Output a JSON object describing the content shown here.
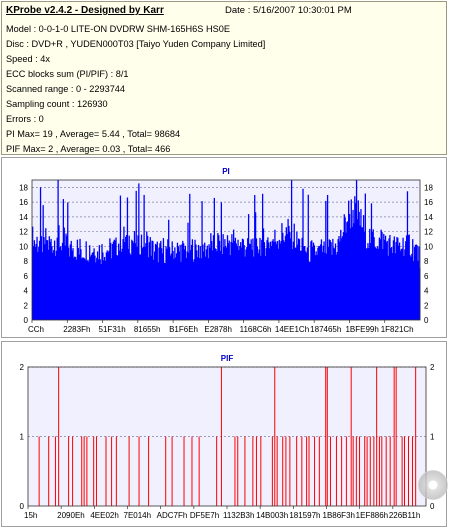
{
  "header": {
    "title": "KProbe v2.4.2 - Designed by Karr",
    "date": "Date : 5/16/2007 10:30:01 PM",
    "lines": [
      "Model : 0-0-1-0 LITE-ON DVDRW SHM-165H6S HS0E",
      "Disc : DVD+R , YUDEN000T03 [Taiyo Yuden Company Limited]",
      "Speed : 4x",
      "ECC blocks sum (PI/PIF) : 8/1",
      "Scanned range : 0 - 2293744",
      "Sampling count : 126930",
      "Errors : 0",
      "PI Max= 19 , Average= 5.44 , Total= 98684",
      "PIF Max= 2 , Average= 0.03 , Total= 466"
    ]
  },
  "colors": {
    "pi_bar": "#0000ff",
    "pif_bar": "#ff0000",
    "plot_bg": "#f0f0ff",
    "title": "#0000c8",
    "grid": "#8080a0"
  },
  "chart_data": [
    {
      "type": "bar",
      "title": "PI",
      "yticks": [
        0,
        2,
        4,
        6,
        8,
        10,
        12,
        14,
        16,
        18
      ],
      "ylim": [
        0,
        19
      ],
      "xticks": [
        "CCh",
        "2283Fh",
        "51F31h",
        "81655h",
        "B1F6Eh",
        "E2878h",
        "1168C6h",
        "14EE1Ch",
        "187465h",
        "1BFE99h",
        "1F821Ch"
      ],
      "series": [
        {
          "values": [
            11.0,
            11.9,
            10.6,
            10.4,
            10.5,
            10.8,
            10.5,
            10.6,
            10.6,
            10.3,
            10.2,
            10.4,
            10.3,
            10.1,
            10.5,
            10.8,
            11.1,
            10.3,
            10.2,
            10.4,
            10.4,
            10.4,
            10.3,
            10.5,
            10.1,
            10.8,
            10.6,
            10.7,
            11.5,
            12.0,
            11.9,
            10.7,
            10.3,
            10.6,
            10.2,
            10.6,
            10.9,
            10.2,
            10.7,
            11.0,
            9.9,
            10.0,
            9.6,
            9.6,
            9.7,
            10.2,
            9.7,
            9.7,
            10.0,
            9.2,
            9.5,
            9.8,
            9.6,
            9.2,
            9.7,
            9.7,
            9.3,
            9.1,
            9.6,
            9.5,
            9.7,
            9.6,
            9.7,
            9.6,
            9.3,
            9.8,
            9.5,
            9.2,
            9.7,
            9.7,
            9.7,
            9.9,
            9.4,
            9.5,
            9.0,
            9.4,
            9.5,
            9.3,
            9.1,
            9.5,
            9.4,
            9.5,
            9.3,
            9.4,
            9.6,
            9.5,
            9.7,
            9.6,
            9.6,
            9.4,
            9.6,
            10.2,
            9.8,
            9.9,
            9.9,
            9.7,
            10.1,
            10.4,
            10.4,
            10.3,
            10.6,
            10.9,
            11.0,
            11.0,
            11.1,
            11.2,
            11.0,
            10.7,
            10.8,
            10.8,
            10.9,
            10.8,
            10.6,
            10.9,
            10.9,
            10.6,
            10.5,
            10.8,
            10.6,
            10.8,
            10.5,
            10.8,
            10.4,
            10.8,
            10.7,
            10.5,
            11.1,
            10.7,
            10.8,
            10.7,
            10.8,
            10.4,
            10.3,
            10.3,
            10.1,
            10.0,
            9.7,
            9.6,
            9.2,
            9.5,
            9.4,
            9.3,
            9.4,
            9.2,
            9.1,
            9.3,
            9.3,
            9.4,
            9.1,
            9.7,
            9.4,
            9.1,
            9.3,
            9.6,
            9.6,
            9.3,
            9.8,
            9.6,
            9.6,
            9.3,
            9.2,
            9.8,
            9.8,
            9.6,
            9.2,
            9.7,
            9.2,
            9.3,
            9.6,
            9.5,
            9.5,
            9.5,
            9.4,
            9.6,
            9.6,
            9.5,
            9.7,
            9.2,
            9.7,
            9.5,
            9.6,
            9.5,
            9.8,
            9.6,
            9.7,
            9.5,
            9.5,
            9.6,
            9.8,
            9.8,
            9.5,
            9.8,
            9.8,
            9.8,
            9.8,
            10.0,
            9.5,
            9.8,
            9.7,
            9.8,
            9.5,
            10.2,
            10.3,
            10.4,
            10.2,
            10.3,
            10.1,
            10.2,
            10.0,
            10.5,
            10.4,
            10.6,
            10.4,
            10.4,
            10.4,
            10.8,
            10.4,
            10.3,
            10.4,
            10.5,
            10.1,
            10.6,
            10.6,
            10.5,
            10.8,
            10.4,
            10.6,
            10.4,
            10.9,
            10.9,
            10.5,
            10.3,
            10.8,
            10.6,
            10.5,
            10.5,
            10.4,
            10.1,
            10.2,
            10.4,
            10.2,
            10.2,
            10.0,
            10.1,
            10.5,
            10.2,
            10.2,
            10.2,
            10.0,
            10.0,
            10.2,
            10.5,
            10.3,
            10.5,
            10.5,
            9.8,
            10.5,
            10.2,
            10.2,
            10.7,
            10.5,
            10.5,
            10.6,
            10.8,
            10.6,
            10.5,
            10.7,
            10.4,
            10.7,
            10.9,
            10.7,
            10.5,
            10.9,
            10.7,
            11.0,
            10.8,
            11.0,
            10.9,
            11.3,
            11.2,
            11.2,
            11.5,
            11.3,
            11.3,
            11.6,
            11.7,
            11.5,
            11.7,
            12.0,
            11.8,
            11.6,
            12.0,
            11.8,
            11.7,
            11.9,
            11.4,
            11.6,
            11.5,
            11.5,
            11.2,
            10.6,
            10.5,
            10.4,
            10.8,
            10.2,
            10.4,
            10.0,
            10.3,
            10.0,
            10.2,
            9.6,
            9.6,
            9.6,
            9.4,
            9.3,
            9.2,
            9.1,
            9.4,
            9.4,
            8.9,
            9.1,
            9.2,
            9.3,
            9.0,
            9.4,
            9.1,
            9.3,
            9.5,
            9.2,
            9.6,
            9.6,
            9.2,
            9.4,
            9.8,
            9.3,
            9.6,
            9.6,
            9.7,
            9.6,
            9.6,
            9.8,
            9.5,
            9.8,
            10.0,
            9.6,
            10.2,
            10.0,
            10.2,
            10.4,
            10.7,
            10.9,
            11.1,
            11.6,
            12.0,
            12.2,
            12.6,
            12.8,
            13.3,
            13.9,
            14.0,
            14.4,
            14.4,
            14.5,
            14.8,
            14.6,
            14.9,
            15.1,
            14.7,
            14.5,
            14.7,
            14.3,
            14.2,
            14.1,
            13.8,
            13.1,
            13.0,
            13.0,
            12.5,
            12.1,
            12.0,
            11.7,
            11.7,
            11.3,
            11.3,
            11.1,
            11.3,
            11.0,
            11.3,
            11.0,
            11.1,
            11.1,
            10.9,
            10.8,
            11.0,
            10.9,
            10.6,
            10.8,
            11.0,
            11.0,
            11.1,
            10.8,
            10.6,
            11.0,
            10.7,
            10.4,
            10.5,
            10.1,
            10.2,
            10.0,
            10.4,
            10.2,
            9.9,
            10.0,
            9.8,
            10.1,
            9.9,
            10.2,
            10.0,
            10.0,
            9.9,
            10.0,
            10.3,
            10.3,
            10.4,
            10.2,
            10.3,
            10.2,
            10.5,
            10.4,
            10.4,
            10.4,
            10.0,
            9.9,
            10.1,
            9.6,
            9.6,
            9.7,
            9.5,
            9.4,
            8.9,
            8.7,
            8.5
          ]
        }
      ]
    },
    {
      "type": "bar",
      "title": "PIF",
      "yticks": [
        0,
        1,
        2
      ],
      "ylim": [
        0,
        2
      ],
      "xticks": [
        "15h",
        "2090Eh",
        "4EE02h",
        "7E014h",
        "ADC7Fh",
        "DF5E7h",
        "1132B3h",
        "14B003h",
        "181597h",
        "1B86F3h",
        "1EF886h",
        "226B11h"
      ],
      "series": [
        {
          "events": [
            [
              0.028,
              1
            ],
            [
              0.052,
              1
            ],
            [
              0.069,
              1
            ],
            [
              0.077,
              2
            ],
            [
              0.102,
              1
            ],
            [
              0.112,
              1
            ],
            [
              0.135,
              1
            ],
            [
              0.141,
              1
            ],
            [
              0.148,
              1
            ],
            [
              0.165,
              1
            ],
            [
              0.172,
              1
            ],
            [
              0.196,
              1
            ],
            [
              0.21,
              1
            ],
            [
              0.222,
              1
            ],
            [
              0.254,
              1
            ],
            [
              0.279,
              1
            ],
            [
              0.303,
              1
            ],
            [
              0.346,
              1
            ],
            [
              0.362,
              1
            ],
            [
              0.392,
              1
            ],
            [
              0.412,
              1
            ],
            [
              0.43,
              1
            ],
            [
              0.474,
              1
            ],
            [
              0.486,
              2
            ],
            [
              0.52,
              1
            ],
            [
              0.527,
              1
            ],
            [
              0.545,
              1
            ],
            [
              0.565,
              1
            ],
            [
              0.574,
              1
            ],
            [
              0.585,
              1
            ],
            [
              0.614,
              1
            ],
            [
              0.62,
              2
            ],
            [
              0.626,
              1
            ],
            [
              0.64,
              1
            ],
            [
              0.648,
              1
            ],
            [
              0.658,
              1
            ],
            [
              0.675,
              1
            ],
            [
              0.688,
              1
            ],
            [
              0.7,
              1
            ],
            [
              0.706,
              1
            ],
            [
              0.72,
              1
            ],
            [
              0.732,
              1
            ],
            [
              0.748,
              2
            ],
            [
              0.752,
              2
            ],
            [
              0.76,
              1
            ],
            [
              0.775,
              1
            ],
            [
              0.788,
              1
            ],
            [
              0.8,
              1
            ],
            [
              0.812,
              2
            ],
            [
              0.817,
              1
            ],
            [
              0.825,
              1
            ],
            [
              0.833,
              1
            ],
            [
              0.846,
              1
            ],
            [
              0.852,
              1
            ],
            [
              0.86,
              1
            ],
            [
              0.869,
              1
            ],
            [
              0.876,
              2
            ],
            [
              0.883,
              1
            ],
            [
              0.889,
              1
            ],
            [
              0.9,
              1
            ],
            [
              0.91,
              1
            ],
            [
              0.92,
              2
            ],
            [
              0.925,
              2
            ],
            [
              0.94,
              1
            ],
            [
              0.946,
              1
            ],
            [
              0.956,
              1
            ],
            [
              0.966,
              1
            ],
            [
              0.974,
              2
            ]
          ]
        }
      ]
    }
  ]
}
